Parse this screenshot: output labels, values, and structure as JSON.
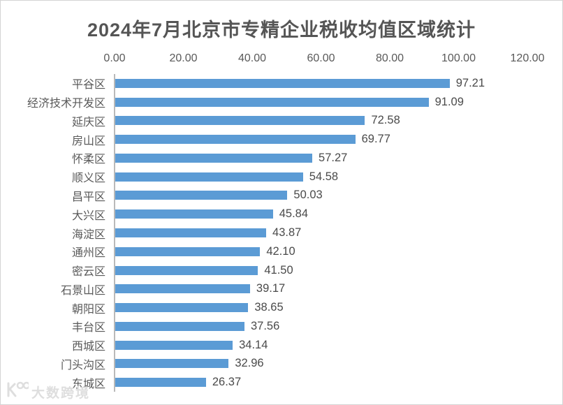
{
  "chart": {
    "title": "2024年7月北京市专精企业税收均值区域统计",
    "watermark": "大数跨境"
  },
  "chart_data": {
    "type": "bar",
    "orientation": "horizontal",
    "title": "2024年7月北京市专精企业税收均值区域统计",
    "categories": [
      "平谷区",
      "经济技术开发区",
      "延庆区",
      "房山区",
      "怀柔区",
      "顺义区",
      "昌平区",
      "大兴区",
      "海淀区",
      "通州区",
      "密云区",
      "石景山区",
      "朝阳区",
      "丰台区",
      "西城区",
      "门头沟区",
      "东城区"
    ],
    "values": [
      97.21,
      91.09,
      72.58,
      69.77,
      57.27,
      54.58,
      50.03,
      45.84,
      43.87,
      42.1,
      41.5,
      39.17,
      38.65,
      37.56,
      34.14,
      32.96,
      26.37
    ],
    "value_labels": [
      "97.21",
      "91.09",
      "72.58",
      "69.77",
      "57.27",
      "54.58",
      "50.03",
      "45.84",
      "43.87",
      "42.10",
      "41.50",
      "39.17",
      "38.65",
      "37.56",
      "34.14",
      "32.96",
      "26.37"
    ],
    "x_ticks": [
      "0.00",
      "20.00",
      "40.00",
      "60.00",
      "80.00",
      "100.00",
      "120.00"
    ],
    "xlim": [
      0,
      120
    ],
    "xlabel": "",
    "ylabel": "",
    "axis_position": "top",
    "grid": false,
    "legend": "none",
    "bar_color": "#5B9BD5",
    "text_color": "#595959",
    "axis_line_color": "#b9b9b9",
    "watermark": "大数跨境"
  }
}
